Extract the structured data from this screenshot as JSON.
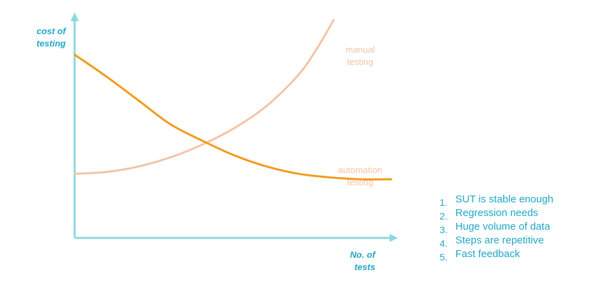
{
  "chart_data": {
    "type": "line",
    "ylabel": "cost of\ntesting",
    "xlabel": "No. of\ntests",
    "series": [
      {
        "name": "manual\ntesting",
        "color": "#f3c4a5",
        "points": [
          [
            0.0,
            0.35
          ],
          [
            0.1,
            0.36
          ],
          [
            0.2,
            0.39
          ],
          [
            0.3,
            0.44
          ],
          [
            0.4,
            0.51
          ],
          [
            0.5,
            0.6
          ],
          [
            0.6,
            0.72
          ],
          [
            0.7,
            0.89
          ],
          [
            0.76,
            1.04
          ],
          [
            0.81,
            1.19
          ]
        ]
      },
      {
        "name": "automation\ntesting",
        "color": "#f39a1a",
        "points": [
          [
            0.0,
            1.0
          ],
          [
            0.1,
            0.88
          ],
          [
            0.2,
            0.75
          ],
          [
            0.3,
            0.62
          ],
          [
            0.4,
            0.53
          ],
          [
            0.5,
            0.45
          ],
          [
            0.6,
            0.39
          ],
          [
            0.7,
            0.35
          ],
          [
            0.8,
            0.33
          ],
          [
            0.9,
            0.32
          ],
          [
            0.99,
            0.32
          ]
        ]
      }
    ],
    "axis_color": "#8fd8df"
  },
  "reasons": [
    {
      "number": "1.",
      "text": "SUT is stable enough"
    },
    {
      "number": "2.",
      "text": "Regression needs"
    },
    {
      "number": "3.",
      "text": "Huge volume of data"
    },
    {
      "number": "4.",
      "text": "Steps are repetitive"
    },
    {
      "number": "5.",
      "text": "Fast feedback"
    }
  ]
}
